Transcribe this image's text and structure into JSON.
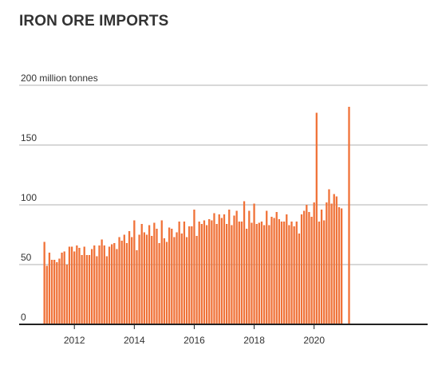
{
  "title": "IRON ORE IMPORTS",
  "colors": {
    "bar": "#f07238",
    "grid": "#cccccc",
    "axis": "#222222",
    "text": "#333333"
  },
  "chart_data": {
    "type": "bar",
    "title": "IRON ORE IMPORTS",
    "xlabel": "",
    "ylabel": "",
    "unit_label": "200 million tonnes",
    "ylim": [
      0,
      200
    ],
    "y_ticks": [
      0,
      50,
      100,
      150,
      200
    ],
    "y_tick_labels": [
      "0",
      "50",
      "100",
      "150",
      "200 million tonnes"
    ],
    "x_tick_labels": [
      "2012",
      "2014",
      "2016",
      "2018",
      "2020"
    ],
    "x_tick_dates": [
      "2012-01",
      "2014-01",
      "2016-01",
      "2018-01",
      "2020-01"
    ],
    "grid": true,
    "categories": [
      "2011-01",
      "2011-02",
      "2011-03",
      "2011-04",
      "2011-05",
      "2011-06",
      "2011-07",
      "2011-08",
      "2011-09",
      "2011-10",
      "2011-11",
      "2011-12",
      "2012-01",
      "2012-02",
      "2012-03",
      "2012-04",
      "2012-05",
      "2012-06",
      "2012-07",
      "2012-08",
      "2012-09",
      "2012-10",
      "2012-11",
      "2012-12",
      "2013-01",
      "2013-02",
      "2013-03",
      "2013-04",
      "2013-05",
      "2013-06",
      "2013-07",
      "2013-08",
      "2013-09",
      "2013-10",
      "2013-11",
      "2013-12",
      "2014-01",
      "2014-02",
      "2014-03",
      "2014-04",
      "2014-05",
      "2014-06",
      "2014-07",
      "2014-08",
      "2014-09",
      "2014-10",
      "2014-11",
      "2014-12",
      "2015-01",
      "2015-02",
      "2015-03",
      "2015-04",
      "2015-05",
      "2015-06",
      "2015-07",
      "2015-08",
      "2015-09",
      "2015-10",
      "2015-11",
      "2015-12",
      "2016-01",
      "2016-02",
      "2016-03",
      "2016-04",
      "2016-05",
      "2016-06",
      "2016-07",
      "2016-08",
      "2016-09",
      "2016-10",
      "2016-11",
      "2016-12",
      "2017-01",
      "2017-02",
      "2017-03",
      "2017-04",
      "2017-05",
      "2017-06",
      "2017-07",
      "2017-08",
      "2017-09",
      "2017-10",
      "2017-11",
      "2017-12",
      "2018-01",
      "2018-02",
      "2018-03",
      "2018-04",
      "2018-05",
      "2018-06",
      "2018-07",
      "2018-08",
      "2018-09",
      "2018-10",
      "2018-11",
      "2018-12",
      "2019-01",
      "2019-02",
      "2019-03",
      "2019-04",
      "2019-05",
      "2019-06",
      "2019-07",
      "2019-08",
      "2019-09",
      "2019-10",
      "2019-11",
      "2019-12",
      "2020-01",
      "2020-02",
      "2020-03",
      "2020-04",
      "2020-05",
      "2020-06",
      "2020-07",
      "2020-08",
      "2020-09",
      "2020-10",
      "2020-11",
      "2020-12",
      "2021-01",
      "2021-02",
      "2021-03"
    ],
    "values": [
      69,
      49,
      60,
      54,
      54,
      52,
      55,
      60,
      61,
      50,
      65,
      65,
      61,
      66,
      64,
      58,
      65,
      58,
      58,
      63,
      66,
      57,
      66,
      71,
      66,
      57,
      65,
      67,
      68,
      63,
      73,
      70,
      75,
      68,
      78,
      73,
      87,
      62,
      75,
      84,
      77,
      75,
      83,
      74,
      85,
      80,
      68,
      87,
      72,
      69,
      81,
      80,
      73,
      77,
      86,
      76,
      86,
      73,
      82,
      82,
      96,
      74,
      86,
      84,
      87,
      83,
      88,
      87,
      93,
      84,
      92,
      89,
      92,
      84,
      96,
      83,
      91,
      95,
      86,
      86,
      103,
      80,
      95,
      85,
      101,
      84,
      85,
      86,
      83,
      95,
      83,
      90,
      89,
      94,
      88,
      86,
      86,
      92,
      83,
      86,
      82,
      86,
      76,
      92,
      95,
      100,
      94,
      90,
      102,
      177,
      86,
      96,
      87,
      102,
      113,
      101,
      109,
      107,
      98,
      97,
      0,
      0,
      182
    ]
  }
}
